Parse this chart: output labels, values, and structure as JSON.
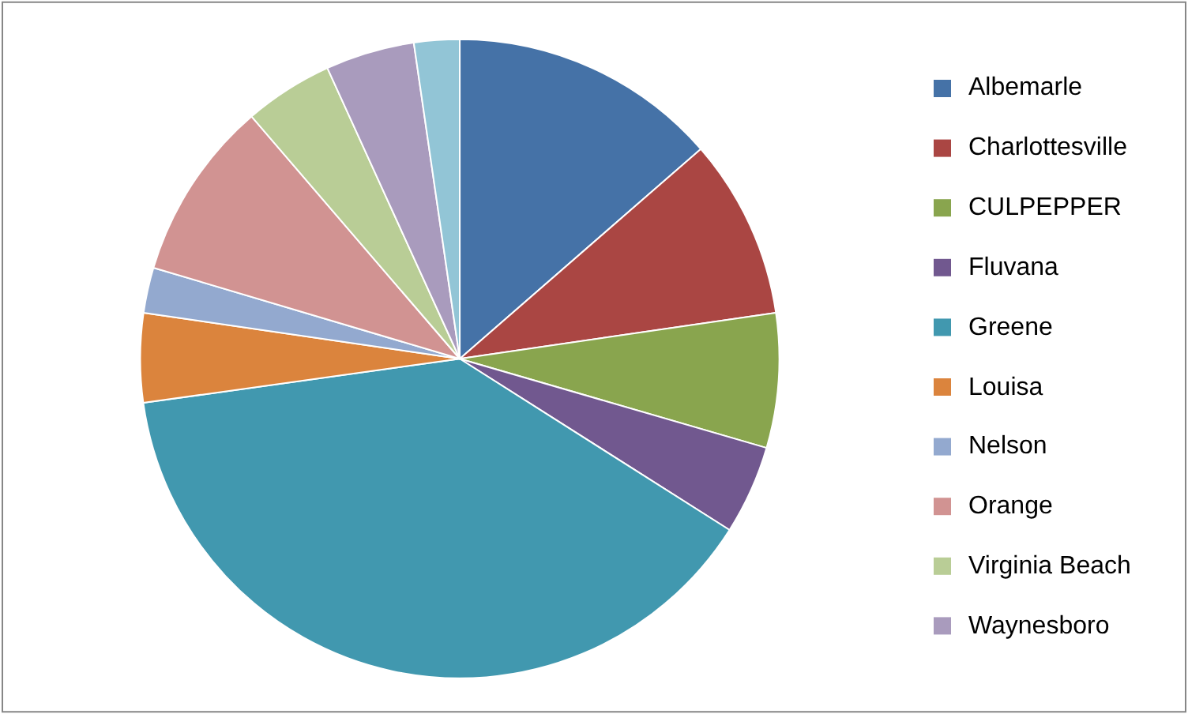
{
  "chart_data": {
    "type": "pie",
    "categories": [
      "Albemarle",
      "Charlottesville",
      "CULPEPPER",
      "Fluvana",
      "Greene",
      "Louisa",
      "Nelson",
      "Orange",
      "Virginia Beach",
      "Waynesboro",
      null
    ],
    "values": [
      13.6,
      9.1,
      6.8,
      4.5,
      38.8,
      4.5,
      2.3,
      9.1,
      4.5,
      4.5,
      2.3
    ],
    "colors": [
      "#4572a7",
      "#aa4643",
      "#89a54e",
      "#71588f",
      "#4198af",
      "#db843d",
      "#93a9cf",
      "#d19392",
      "#b9cd96",
      "#a99bbd",
      "#92c5d6"
    ],
    "legend": "right"
  }
}
